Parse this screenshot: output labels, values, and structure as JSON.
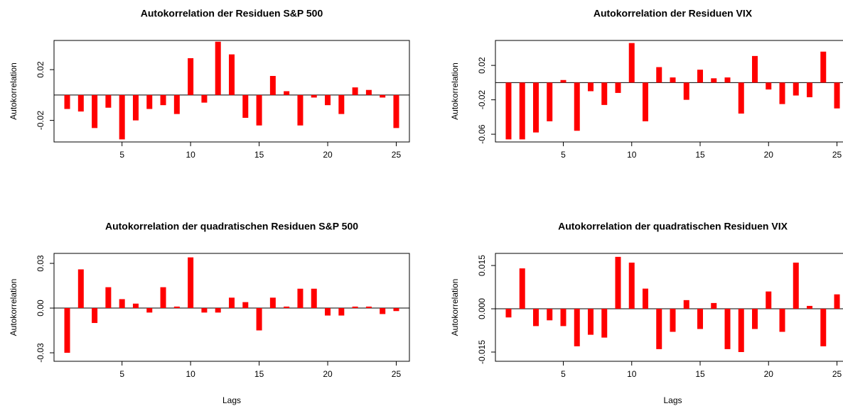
{
  "chart_data": [
    {
      "type": "bar",
      "title": "Autokorrelation der Residuen S&P 500",
      "ylabel": "Autokorrelation",
      "color": "#ff0000",
      "x": [
        1,
        2,
        3,
        4,
        5,
        6,
        7,
        8,
        9,
        10,
        11,
        12,
        13,
        14,
        15,
        16,
        17,
        18,
        19,
        20,
        21,
        22,
        23,
        24,
        25
      ],
      "values": [
        -0.011,
        -0.013,
        -0.026,
        -0.01,
        -0.035,
        -0.02,
        -0.011,
        -0.008,
        -0.015,
        0.029,
        -0.006,
        0.042,
        0.032,
        -0.018,
        -0.024,
        0.015,
        0.003,
        -0.024,
        -0.002,
        -0.008,
        -0.015,
        0.006,
        0.004,
        -0.002,
        -0.026
      ],
      "xlim": [
        0.04,
        25.96
      ],
      "xticks": [
        5,
        10,
        15,
        20,
        25
      ],
      "ylim": [
        -0.037,
        0.043
      ],
      "yticks": [
        -0.02,
        0.02
      ]
    },
    {
      "type": "bar",
      "title": "Autokorrelation der Residuen VIX",
      "ylabel": "Autokorrelation",
      "color": "#ff0000",
      "x": [
        1,
        2,
        3,
        4,
        5,
        6,
        7,
        8,
        9,
        10,
        11,
        12,
        13,
        14,
        15,
        16,
        17,
        18,
        19,
        20,
        21,
        22,
        23,
        24,
        25
      ],
      "values": [
        -0.066,
        -0.066,
        -0.058,
        -0.045,
        0.003,
        -0.056,
        -0.01,
        -0.026,
        -0.012,
        0.046,
        -0.045,
        0.018,
        0.006,
        -0.02,
        0.015,
        0.005,
        0.006,
        -0.036,
        0.031,
        -0.008,
        -0.025,
        -0.015,
        -0.017,
        0.036,
        -0.03
      ],
      "xlim": [
        0.04,
        25.96
      ],
      "xticks": [
        5,
        10,
        15,
        20,
        25
      ],
      "ylim": [
        -0.069,
        0.049
      ],
      "yticks": [
        -0.06,
        -0.02,
        0.02
      ]
    },
    {
      "type": "bar",
      "title": "Autokorrelation der quadratischen Residuen S&P 500",
      "ylabel": "Autokorrelation",
      "xlabel": "Lags",
      "color": "#ff0000",
      "x": [
        1,
        2,
        3,
        4,
        5,
        6,
        7,
        8,
        9,
        10,
        11,
        12,
        13,
        14,
        15,
        16,
        17,
        18,
        19,
        20,
        21,
        22,
        23,
        24,
        25
      ],
      "values": [
        -0.03,
        0.026,
        -0.01,
        0.014,
        0.006,
        0.003,
        -0.003,
        0.014,
        0.001,
        0.034,
        -0.003,
        -0.003,
        0.007,
        0.004,
        -0.015,
        0.007,
        0.001,
        0.013,
        0.013,
        -0.005,
        -0.005,
        0.001,
        0.001,
        -0.004,
        -0.002
      ],
      "xlim": [
        0.04,
        25.96
      ],
      "xticks": [
        5,
        10,
        15,
        20,
        25
      ],
      "ylim": [
        -0.0357,
        0.0367
      ],
      "yticks": [
        -0.03,
        {
          "value": 0,
          "label": "0.00"
        },
        0.03
      ]
    },
    {
      "type": "bar",
      "title": "Autokorrelation der quadratischen Residuen VIX",
      "ylabel": "Autokorrelation",
      "xlabel": "Lags",
      "color": "#ff0000",
      "x": [
        1,
        2,
        3,
        4,
        5,
        6,
        7,
        8,
        9,
        10,
        11,
        12,
        13,
        14,
        15,
        16,
        17,
        18,
        19,
        20,
        21,
        22,
        23,
        24,
        25
      ],
      "values": [
        -0.003,
        0.014,
        -0.006,
        -0.004,
        -0.006,
        -0.013,
        -0.009,
        -0.01,
        0.018,
        0.016,
        0.007,
        -0.014,
        -0.008,
        0.003,
        -0.007,
        0.002,
        -0.014,
        -0.015,
        -0.007,
        0.006,
        -0.008,
        0.016,
        0.001,
        -0.013,
        0.005
      ],
      "xlim": [
        0.04,
        25.96
      ],
      "xticks": [
        5,
        10,
        15,
        20,
        25
      ],
      "ylim": [
        -0.0182,
        0.0192
      ],
      "yticks": [
        -0.015,
        {
          "value": 0,
          "label": "0.000"
        },
        0.015
      ]
    }
  ]
}
